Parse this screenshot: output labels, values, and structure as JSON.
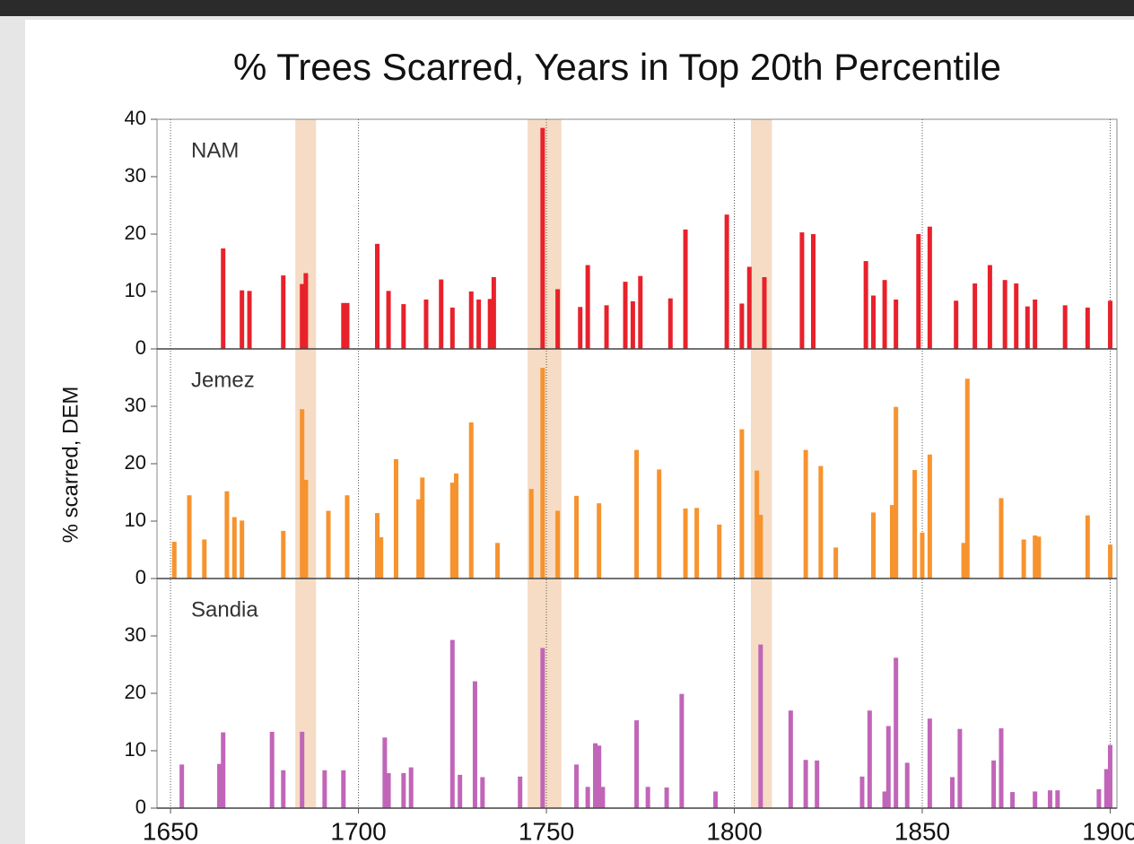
{
  "chart_data": {
    "type": "bar",
    "title": "% Trees Scarred, Years in Top 20th Percentile",
    "y_label": "% scarred, DEM",
    "xlim": [
      1646.4,
      1901.8
    ],
    "xticks": [
      1650,
      1700,
      1750,
      1800,
      1850,
      1900
    ],
    "xgrid": true,
    "highlight_spans": [
      [
        1683.2,
        1688.7
      ],
      [
        1745,
        1754
      ],
      [
        1804.4,
        1810
      ]
    ],
    "highlight_color": "#f6dcc4",
    "series": [
      {
        "name": "NAM",
        "color": "#e8212b",
        "ylim": [
          0,
          40
        ],
        "yticks": [
          0,
          10,
          20,
          30,
          40
        ],
        "x": [
          1664,
          1669,
          1671,
          1680,
          1685,
          1686,
          1696,
          1697,
          1705,
          1708,
          1712,
          1718,
          1722,
          1725,
          1730,
          1732,
          1735,
          1736,
          1749,
          1753,
          1759,
          1761,
          1766,
          1771,
          1773,
          1775,
          1783,
          1787,
          1798,
          1802,
          1804,
          1808,
          1818,
          1821,
          1835,
          1837,
          1840,
          1843,
          1849,
          1852,
          1859,
          1864,
          1868,
          1872,
          1875,
          1878,
          1880,
          1888,
          1894,
          1900
        ],
        "values": [
          17.5,
          10.2,
          10.1,
          12.8,
          11.3,
          13.2,
          8,
          8,
          18.3,
          10.1,
          7.8,
          8.6,
          12.1,
          7.2,
          10,
          8.6,
          8.7,
          12.5,
          38.5,
          10.4,
          7.3,
          14.6,
          7.6,
          11.7,
          8.3,
          12.7,
          8.8,
          20.8,
          23.4,
          7.9,
          14.3,
          12.5,
          20.3,
          20,
          15.3,
          9.3,
          12,
          8.6,
          20,
          21.3,
          8.4,
          11.4,
          14.6,
          12,
          11.4,
          7.4,
          8.6,
          7.6,
          7.2,
          8.4
        ]
      },
      {
        "name": "Jemez",
        "color": "#f7932e",
        "ylim": [
          0,
          40
        ],
        "yticks": [
          0,
          10,
          20,
          30
        ],
        "x": [
          1651,
          1655,
          1659,
          1665,
          1667,
          1669,
          1680,
          1685,
          1686,
          1692,
          1697,
          1705,
          1706,
          1710,
          1716,
          1717,
          1725,
          1726,
          1730,
          1737,
          1746,
          1749,
          1753,
          1758,
          1764,
          1774,
          1780,
          1787,
          1790,
          1796,
          1802,
          1806,
          1807,
          1819,
          1823,
          1827,
          1837,
          1842,
          1843,
          1848,
          1850,
          1852,
          1861,
          1862,
          1871,
          1877,
          1880,
          1881,
          1894,
          1900
        ],
        "values": [
          6.4,
          14.5,
          6.8,
          15.2,
          10.7,
          10.1,
          8.3,
          29.5,
          17.2,
          11.8,
          14.5,
          11.4,
          7.2,
          20.8,
          13.8,
          17.6,
          16.7,
          18.3,
          27.2,
          6.2,
          15.6,
          36.7,
          11.8,
          14.4,
          13.1,
          22.4,
          19,
          12.2,
          12.3,
          9.4,
          26,
          18.8,
          11.1,
          22.4,
          19.6,
          5.4,
          11.5,
          12.8,
          29.9,
          18.9,
          8,
          21.6,
          6.2,
          34.8,
          14,
          6.8,
          7.5,
          7.3,
          11,
          5.9
        ]
      },
      {
        "name": "Sandia",
        "color": "#c165b8",
        "ylim": [
          0,
          40
        ],
        "yticks": [
          0,
          10,
          20,
          30
        ],
        "x": [
          1653,
          1663,
          1664,
          1677,
          1680,
          1685,
          1691,
          1696,
          1707,
          1708,
          1712,
          1714,
          1725,
          1727,
          1731,
          1733,
          1743,
          1749,
          1758,
          1761,
          1763,
          1764,
          1765,
          1774,
          1777,
          1782,
          1786,
          1795,
          1807,
          1815,
          1819,
          1822,
          1834,
          1836,
          1840,
          1841,
          1843,
          1846,
          1852,
          1858,
          1860,
          1869,
          1871,
          1874,
          1880,
          1884,
          1886,
          1897,
          1899,
          1900
        ],
        "values": [
          7.6,
          7.7,
          13.2,
          13.3,
          6.6,
          13.3,
          6.6,
          6.6,
          12.3,
          6.1,
          6.1,
          7.1,
          29.3,
          5.8,
          22.1,
          5.4,
          5.5,
          27.9,
          7.6,
          3.7,
          11.3,
          10.9,
          3.7,
          15.3,
          3.7,
          3.6,
          19.9,
          2.9,
          28.5,
          17,
          8.4,
          8.3,
          5.5,
          17,
          2.9,
          14.3,
          26.2,
          7.9,
          15.6,
          5.4,
          13.8,
          8.3,
          13.9,
          2.8,
          2.9,
          3.1,
          3.1,
          3.3,
          6.8,
          11
        ]
      }
    ]
  }
}
